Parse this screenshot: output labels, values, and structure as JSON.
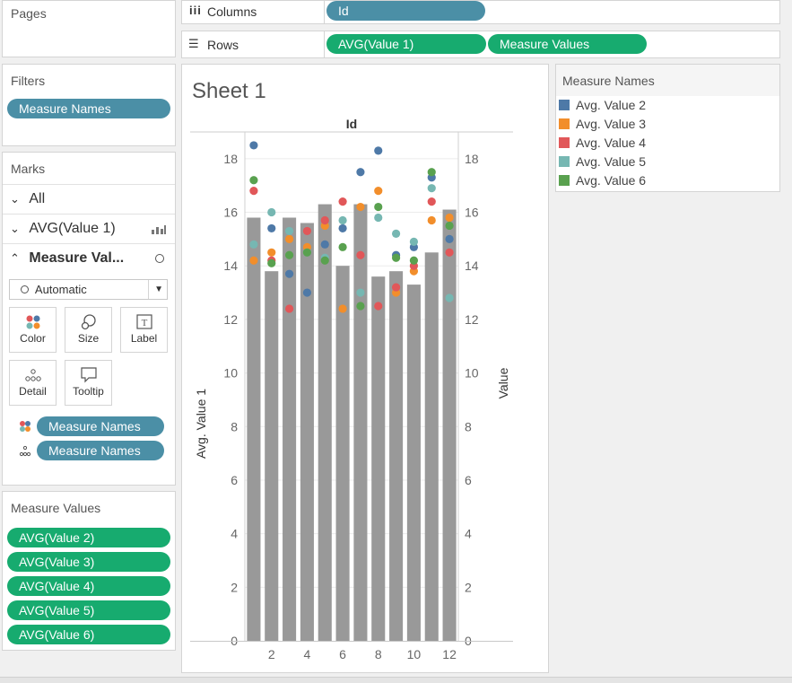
{
  "pages": {
    "title": "Pages"
  },
  "columns": {
    "label": "Columns",
    "pill": "Id"
  },
  "rows": {
    "label": "Rows",
    "pills": [
      "AVG(Value 1)",
      "Measure Values"
    ]
  },
  "filters": {
    "title": "Filters",
    "pill": "Measure Names"
  },
  "marks": {
    "title": "Marks",
    "rows": [
      "All",
      "AVG(Value 1)",
      "Measure Val..."
    ],
    "mark_type": "Automatic",
    "buttons": [
      "Color",
      "Size",
      "Label",
      "Detail",
      "Tooltip"
    ],
    "pills": [
      "Measure Names",
      "Measure Names"
    ]
  },
  "measure_values": {
    "title": "Measure Values",
    "items": [
      "AVG(Value 2)",
      "AVG(Value 3)",
      "AVG(Value 4)",
      "AVG(Value 5)",
      "AVG(Value 6)"
    ]
  },
  "legend": {
    "title": "Measure Names",
    "items": [
      {
        "label": "Avg. Value 2",
        "color": "#4e79a7"
      },
      {
        "label": "Avg. Value 3",
        "color": "#f28e2b"
      },
      {
        "label": "Avg. Value 4",
        "color": "#e15759"
      },
      {
        "label": "Avg. Value 5",
        "color": "#76b7b2"
      },
      {
        "label": "Avg. Value 6",
        "color": "#59a14f"
      }
    ]
  },
  "sheet": {
    "title": "Sheet 1"
  },
  "chart_data": {
    "type": "bar",
    "title": "Id",
    "xlabel": "",
    "ylabel": "Avg. Value 1",
    "y2label": "Value",
    "ylim": [
      0,
      19
    ],
    "y_ticks": [
      0,
      2,
      4,
      6,
      8,
      10,
      12,
      14,
      16,
      18
    ],
    "categories": [
      1,
      2,
      3,
      4,
      5,
      6,
      7,
      8,
      9,
      10,
      11,
      12
    ],
    "x_tick_labels": [
      "2",
      "4",
      "6",
      "8",
      "10",
      "12"
    ],
    "bar_color": "#999999",
    "values": [
      15.8,
      13.8,
      15.8,
      15.6,
      16.3,
      14.0,
      16.3,
      13.6,
      13.8,
      13.3,
      14.5,
      16.1
    ],
    "series": [
      {
        "name": "Avg. Value 2",
        "color": "#4e79a7",
        "values": [
          18.5,
          15.4,
          13.7,
          13.0,
          14.8,
          15.4,
          17.5,
          18.3,
          14.4,
          14.7,
          17.3,
          15.0
        ]
      },
      {
        "name": "Avg. Value 3",
        "color": "#f28e2b",
        "values": [
          14.2,
          14.5,
          15.0,
          14.7,
          15.5,
          12.4,
          16.2,
          16.8,
          13.0,
          13.8,
          15.7,
          15.8
        ]
      },
      {
        "name": "Avg. Value 4",
        "color": "#e15759",
        "values": [
          16.8,
          14.2,
          12.4,
          15.3,
          15.7,
          16.4,
          14.4,
          12.5,
          13.2,
          14.0,
          16.4,
          14.5
        ]
      },
      {
        "name": "Avg. Value 5",
        "color": "#76b7b2",
        "values": [
          14.8,
          16.0,
          15.3,
          14.5,
          14.3,
          15.7,
          13.0,
          15.8,
          15.2,
          14.9,
          16.9,
          12.8
        ]
      },
      {
        "name": "Avg. Value 6",
        "color": "#59a14f",
        "values": [
          17.2,
          14.1,
          14.4,
          14.5,
          14.2,
          14.7,
          12.5,
          16.2,
          14.3,
          14.2,
          17.5,
          15.5
        ]
      }
    ]
  }
}
